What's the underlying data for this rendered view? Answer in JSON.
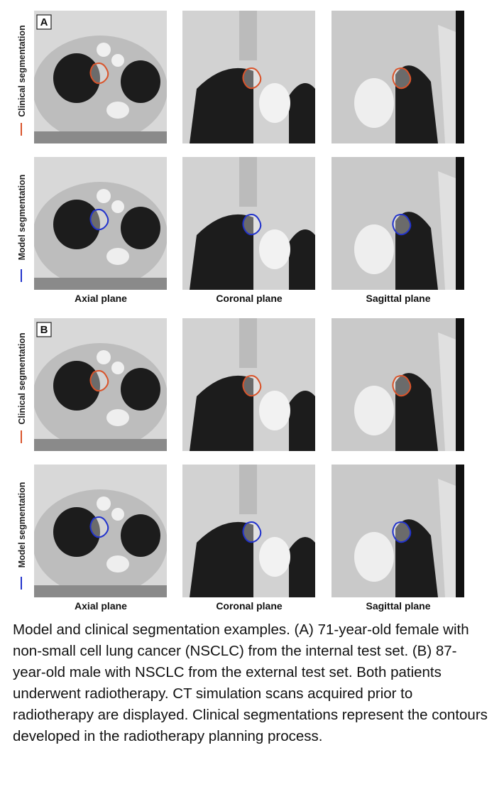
{
  "figure": {
    "panels": [
      {
        "letter": "A",
        "rows": [
          "Clinical segmentation",
          "Model segmentation"
        ],
        "planes": [
          "Axial plane",
          "Coronal plane",
          "Sagittal plane"
        ]
      },
      {
        "letter": "B",
        "rows": [
          "Clinical segmentation",
          "Model segmentation"
        ],
        "planes": [
          "Axial plane",
          "Coronal plane",
          "Sagittal plane"
        ]
      }
    ],
    "caption": "Model and clinical segmentation examples. (A) 71-year-old female with non-small cell lung cancer (NSCLC) from the internal test set. (B) 87-year-old male with NSCLC from the external test set. Both patients underwent radiotherapy. CT simulation scans acquired prior to radiotherapy are displayed. Clinical segmentations represent the contours developed in the radiotherapy planning process."
  }
}
